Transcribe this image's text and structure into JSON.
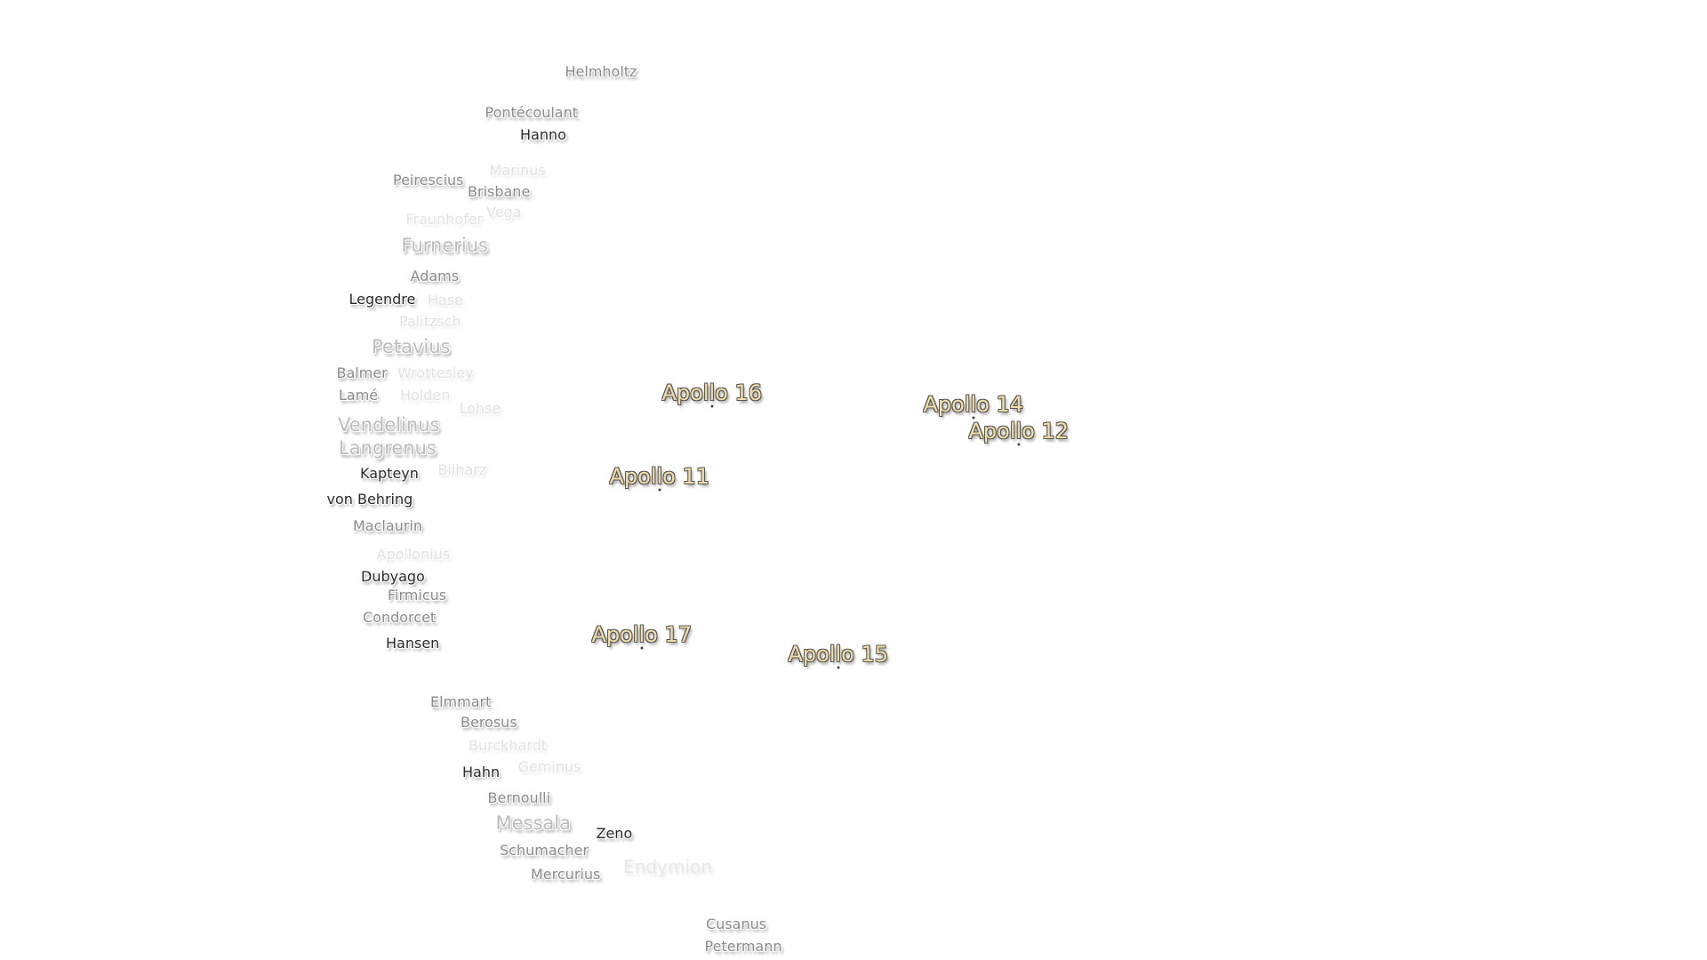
{
  "map": {
    "crater_labels": [
      "Helmholtz",
      "Pontécoulant",
      "Hanno",
      "Marinus",
      "Brisbane",
      "Vega",
      "Peirescius",
      "Fraunhofer",
      "Furnerius",
      "Adams",
      "Hase",
      "Palitzsch",
      "Legendre",
      "Petavius",
      "Wrottesley",
      "Holden",
      "Balmer",
      "Vendelinus",
      "Lohse",
      "Lamé",
      "Langrenus",
      "Kapteyn",
      "Bilharz",
      "von Behring",
      "Maclaurin",
      "Apollonius",
      "Dubyago",
      "Firmicus",
      "Condorcet",
      "Hansen",
      "Elmmart",
      "Burckhardt",
      "Hahn",
      "Geminus",
      "Bernoulli",
      "Berosus",
      "Messala",
      "Schumacher",
      "Mercurius",
      "Zeno",
      "Endymion",
      "Cusanus",
      "Petermann"
    ],
    "landing_sites": [
      "Apollo 16",
      "Apollo 14",
      "Apollo 12",
      "Apollo 11",
      "Apollo 17",
      "Apollo 15"
    ],
    "colors": {
      "landing_site": "#f3dfa8",
      "crater_label": "#8a8a8a"
    }
  }
}
